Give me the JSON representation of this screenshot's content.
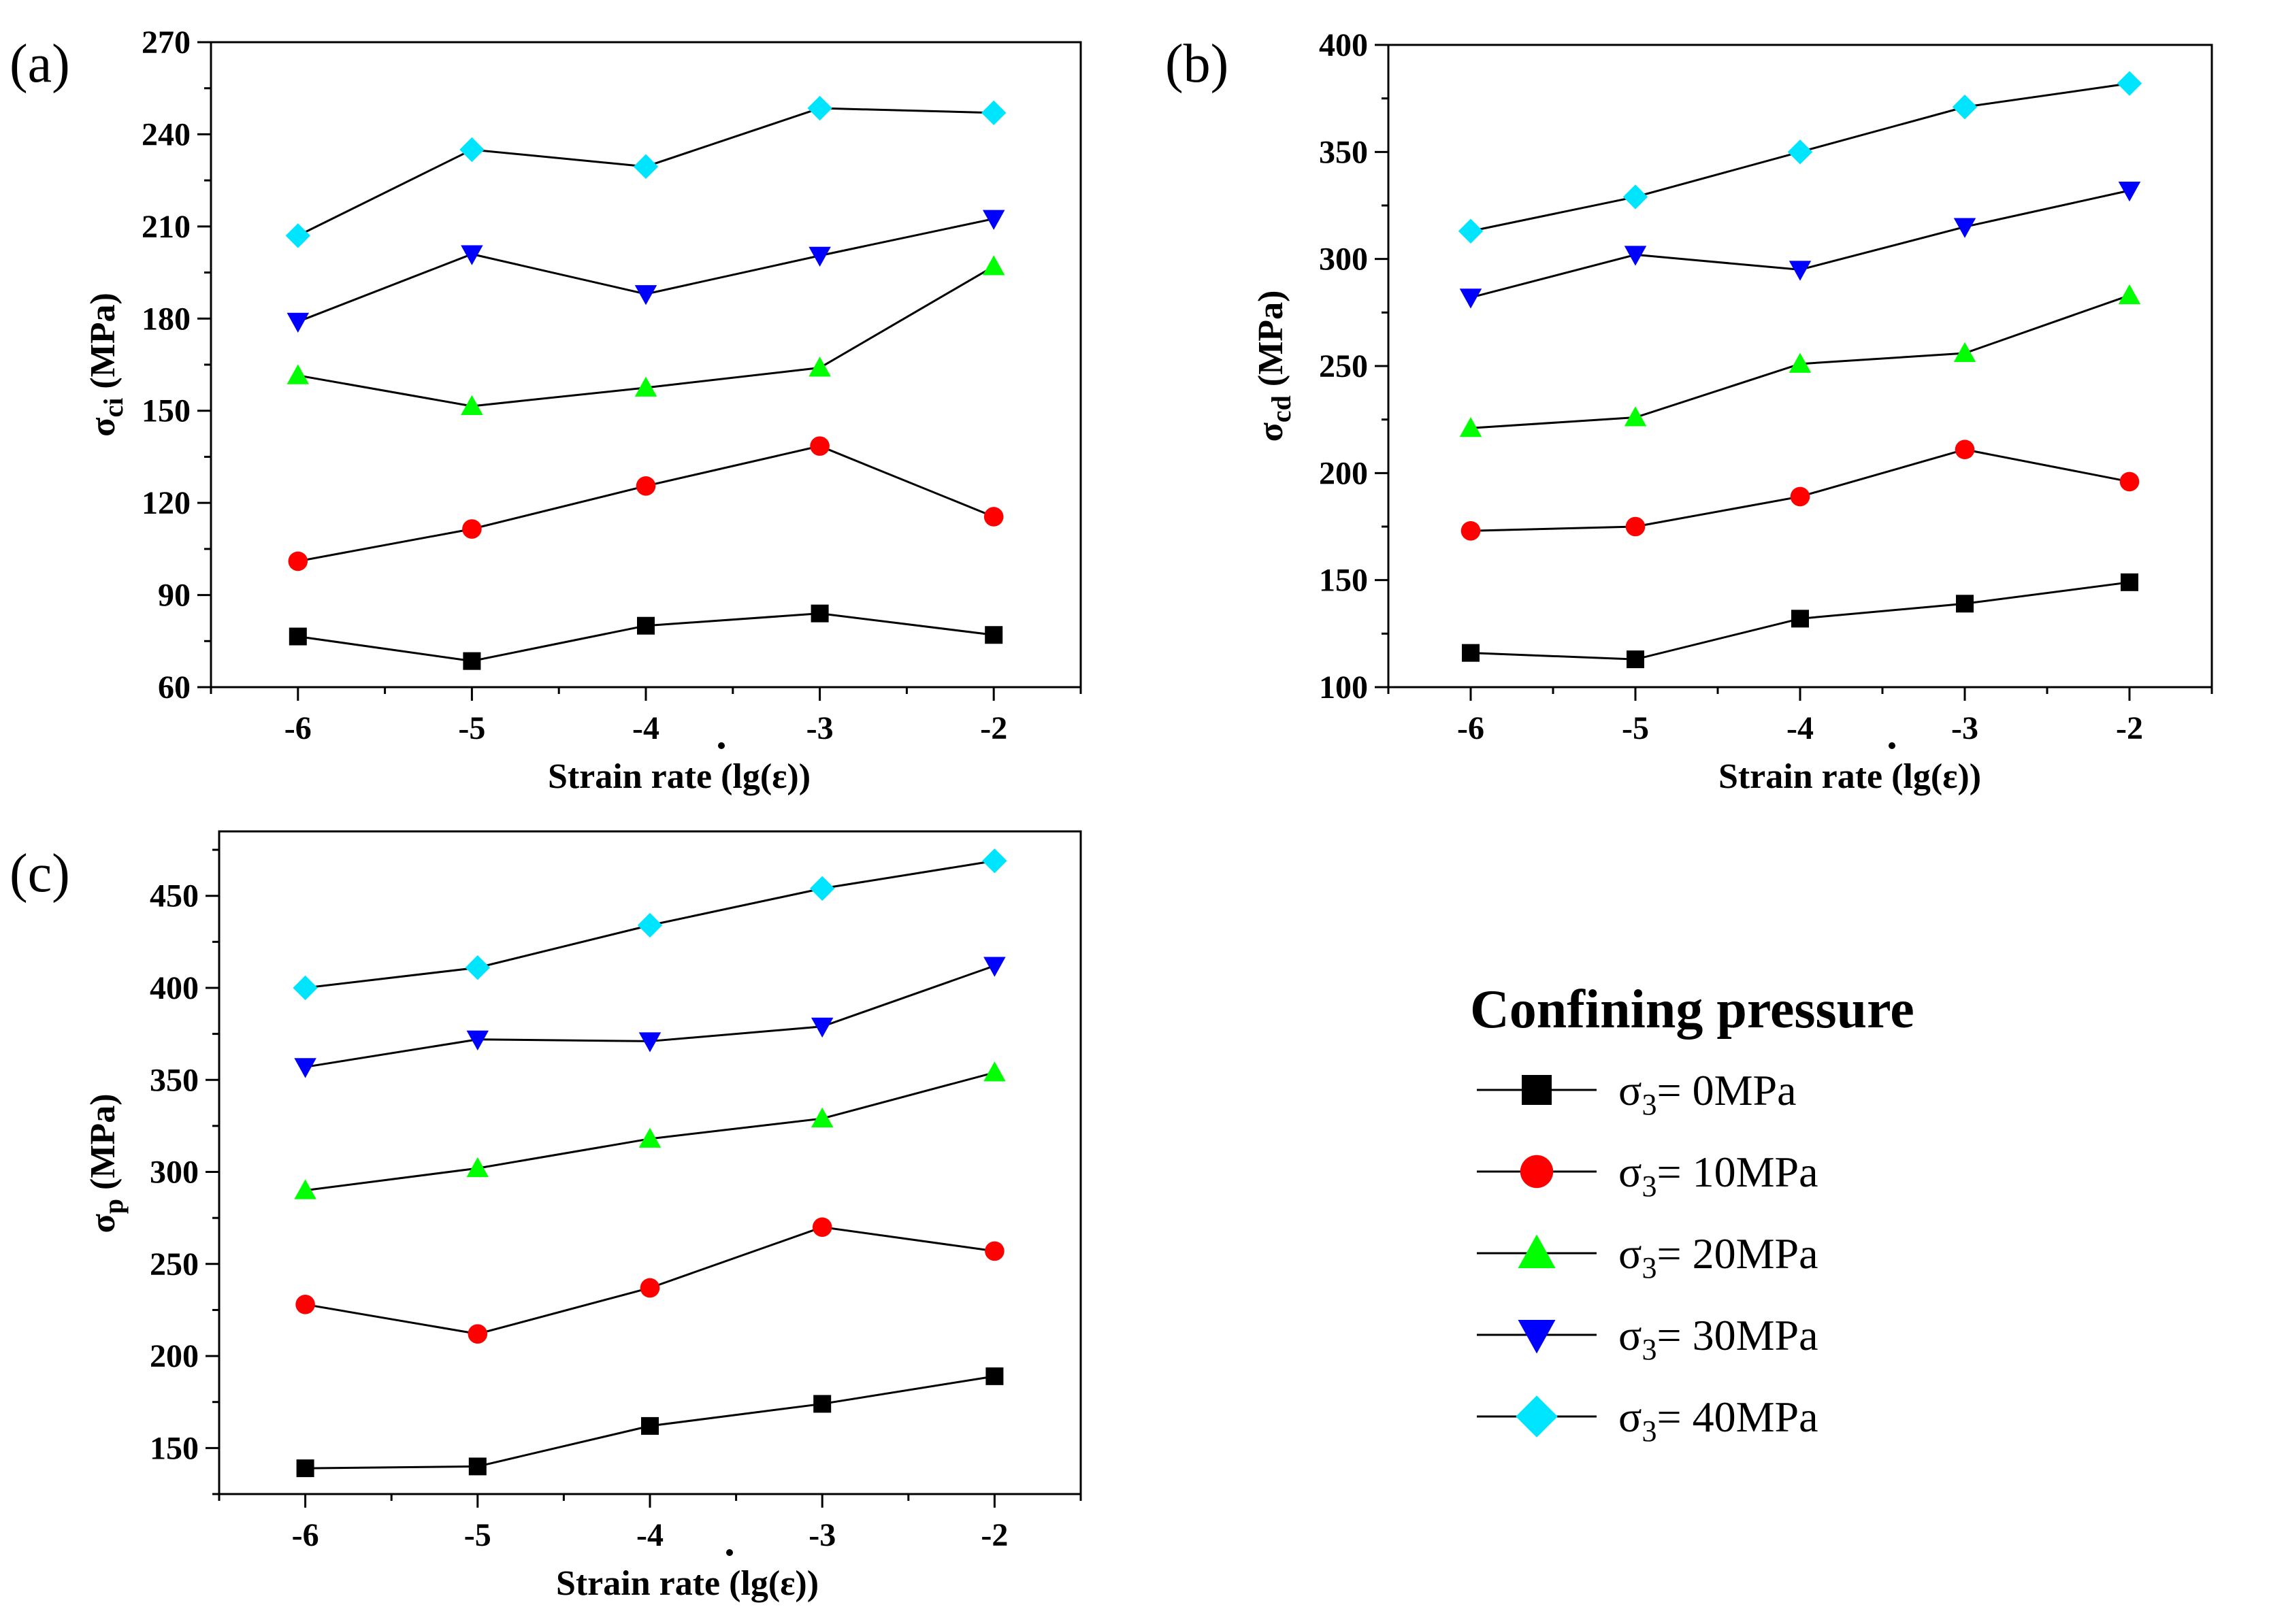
{
  "chart_data": [
    {
      "type": "line",
      "panel_label": "(a)",
      "ylabel_main": "σ",
      "ylabel_sub": "ci",
      "ylabel_unit": " (MPa)",
      "xlabel_prefix": "Strain rate (lg(",
      "xlabel_symbol": "ε",
      "xlabel_suffix": "))",
      "x": [
        -6,
        -5,
        -4,
        -3,
        -2
      ],
      "x_tick_labels": [
        "-6",
        "-5",
        "-4",
        "-3",
        "-2"
      ],
      "xlim": [
        -6.5,
        -1.5
      ],
      "ylim": [
        60,
        270
      ],
      "y_ticks": [
        60,
        90,
        120,
        150,
        180,
        210,
        240,
        270
      ],
      "y_tick_labels": [
        "60",
        "90",
        "120",
        "150",
        "180",
        "210",
        "240",
        "270"
      ],
      "grid": false,
      "series": [
        {
          "name": "σ3= 0MPa",
          "values": [
            76.5,
            68.5,
            80,
            84,
            77
          ]
        },
        {
          "name": "σ3= 10MPa",
          "values": [
            101,
            111.5,
            125.5,
            138.5,
            115.5
          ]
        },
        {
          "name": "σ3= 20MPa",
          "values": [
            161.5,
            151.5,
            157.5,
            164,
            197
          ]
        },
        {
          "name": "σ3= 30MPa",
          "values": [
            179,
            201,
            188,
            200.5,
            212.5
          ]
        },
        {
          "name": "σ3= 40MPa",
          "values": [
            207,
            235,
            229.5,
            248.5,
            247
          ]
        }
      ]
    },
    {
      "type": "line",
      "panel_label": "(b)",
      "ylabel_main": "σ",
      "ylabel_sub": "cd",
      "ylabel_unit": " (MPa)",
      "xlabel_prefix": "Strain rate (lg(",
      "xlabel_symbol": "ε",
      "xlabel_suffix": "))",
      "x": [
        -6,
        -5,
        -4,
        -3,
        -2
      ],
      "x_tick_labels": [
        "-6",
        "-5",
        "-4",
        "-3",
        "-2"
      ],
      "xlim": [
        -6.5,
        -1.5
      ],
      "ylim": [
        100,
        400
      ],
      "y_ticks": [
        100,
        150,
        200,
        250,
        300,
        350,
        400
      ],
      "y_tick_labels": [
        "100",
        "150",
        "200",
        "250",
        "300",
        "350",
        "400"
      ],
      "grid": false,
      "series": [
        {
          "name": "σ3= 0MPa",
          "values": [
            116,
            113,
            132,
            139,
            149
          ]
        },
        {
          "name": "σ3= 10MPa",
          "values": [
            173,
            175,
            189,
            211,
            196
          ]
        },
        {
          "name": "σ3= 20MPa",
          "values": [
            221,
            226,
            251,
            256,
            283
          ]
        },
        {
          "name": "σ3= 30MPa",
          "values": [
            282,
            302,
            295,
            315,
            332
          ]
        },
        {
          "name": "σ3= 40MPa",
          "values": [
            313,
            329,
            350,
            371,
            382
          ]
        }
      ]
    },
    {
      "type": "line",
      "panel_label": "(c)",
      "ylabel_main": "σ",
      "ylabel_sub": "p",
      "ylabel_unit": " (MPa)",
      "xlabel_prefix": "Strain rate (lg(",
      "xlabel_symbol": "ε",
      "xlabel_suffix": "))",
      "x": [
        -6,
        -5,
        -4,
        -3,
        -2
      ],
      "x_tick_labels": [
        "-6",
        "-5",
        "-4",
        "-3",
        "-2"
      ],
      "xlim": [
        -6.5,
        -1.5
      ],
      "ylim": [
        125,
        485
      ],
      "y_ticks": [
        150,
        200,
        250,
        300,
        350,
        400,
        450
      ],
      "y_tick_labels": [
        "150",
        "200",
        "250",
        "300",
        "350",
        "400",
        "450"
      ],
      "grid": false,
      "series": [
        {
          "name": "σ3= 0MPa",
          "values": [
            139,
            140,
            162,
            174,
            189
          ]
        },
        {
          "name": "σ3= 10MPa",
          "values": [
            228,
            212,
            237,
            270,
            257
          ]
        },
        {
          "name": "σ3= 20MPa",
          "values": [
            290,
            302,
            318,
            329,
            354
          ]
        },
        {
          "name": "σ3= 30MPa",
          "values": [
            357,
            372,
            371,
            379,
            412
          ]
        },
        {
          "name": "σ3= 40MPa",
          "values": [
            400,
            411,
            434,
            454,
            469
          ]
        }
      ]
    }
  ],
  "legend": {
    "title": "Confining pressure",
    "placement": "bottom-right",
    "entries": [
      {
        "prefix": "σ",
        "sub": "3",
        "text": "= 0MPa",
        "color": "#000000",
        "marker": "square"
      },
      {
        "prefix": "σ",
        "sub": "3",
        "text": "= 10MPa",
        "color": "#ff0000",
        "marker": "circle"
      },
      {
        "prefix": "σ",
        "sub": "3",
        "text": "= 20MPa",
        "color": "#00ff00",
        "marker": "triangle-up"
      },
      {
        "prefix": "σ",
        "sub": "3",
        "text": "= 30MPa",
        "color": "#0000ff",
        "marker": "triangle-down"
      },
      {
        "prefix": "σ",
        "sub": "3",
        "text": "= 40MPa",
        "color": "#00e5ff",
        "marker": "diamond"
      }
    ]
  }
}
